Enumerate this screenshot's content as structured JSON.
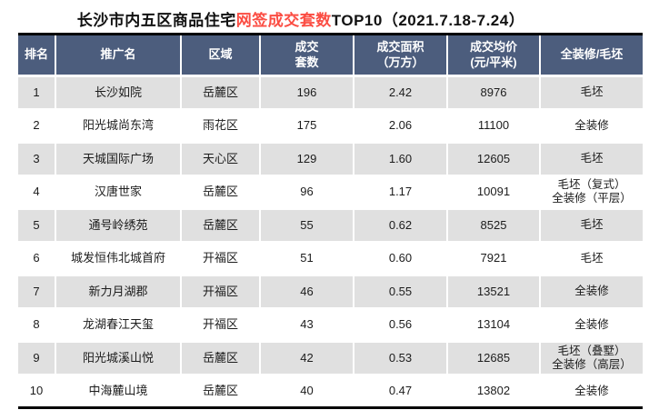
{
  "title": {
    "prefix": "长沙市内五区商品住宅",
    "highlight": "网签成交套数",
    "suffix": "TOP10（2021.7.18-7.24）"
  },
  "colors": {
    "header_bg": "#4c5d7d",
    "alt_row_bg": "#e0e0e0",
    "title_highlight": "#fb4d43",
    "border": "#000000"
  },
  "table": {
    "headers": [
      "排名",
      "推广名",
      "区域",
      "成交\n套数",
      "成交面积\n（万方）",
      "成交均价\n(元/平米)",
      "全装修/毛坯"
    ],
    "rows": [
      {
        "rank": "1",
        "name": "长沙如院",
        "district": "岳麓区",
        "units": "196",
        "area": "2.42",
        "price": "8976",
        "decoration": "毛坯"
      },
      {
        "rank": "2",
        "name": "阳光城尚东湾",
        "district": "雨花区",
        "units": "175",
        "area": "2.06",
        "price": "11100",
        "decoration": "全装修"
      },
      {
        "rank": "3",
        "name": "天城国际广场",
        "district": "天心区",
        "units": "129",
        "area": "1.60",
        "price": "12605",
        "decoration": "毛坯"
      },
      {
        "rank": "4",
        "name": "汉唐世家",
        "district": "岳麓区",
        "units": "96",
        "area": "1.17",
        "price": "10091",
        "decoration": "毛坯（复式）\n全装修（平层）"
      },
      {
        "rank": "5",
        "name": "通号岭绣苑",
        "district": "岳麓区",
        "units": "55",
        "area": "0.62",
        "price": "8525",
        "decoration": "毛坯"
      },
      {
        "rank": "6",
        "name": "城发恒伟北城首府",
        "district": "开福区",
        "units": "51",
        "area": "0.60",
        "price": "7921",
        "decoration": "毛坯"
      },
      {
        "rank": "7",
        "name": "新力月湖郡",
        "district": "开福区",
        "units": "46",
        "area": "0.55",
        "price": "13521",
        "decoration": "全装修"
      },
      {
        "rank": "8",
        "name": "龙湖春江天玺",
        "district": "开福区",
        "units": "43",
        "area": "0.56",
        "price": "13104",
        "decoration": "全装修"
      },
      {
        "rank": "9",
        "name": "阳光城溪山悦",
        "district": "岳麓区",
        "units": "42",
        "area": "0.53",
        "price": "12685",
        "decoration": "毛坯（叠墅）\n全装修（高层）"
      },
      {
        "rank": "10",
        "name": "中海麓山境",
        "district": "岳麓区",
        "units": "40",
        "area": "0.47",
        "price": "13802",
        "decoration": "全装修"
      }
    ]
  },
  "chart_data": {
    "type": "table",
    "title": "长沙市内五区商品住宅网签成交套数TOP10（2021.7.18-7.24）",
    "columns": [
      "排名",
      "推广名",
      "区域",
      "成交套数",
      "成交面积（万方）",
      "成交均价(元/平米)",
      "全装修/毛坯"
    ],
    "rows": [
      [
        1,
        "长沙如院",
        "岳麓区",
        196,
        2.42,
        8976,
        "毛坯"
      ],
      [
        2,
        "阳光城尚东湾",
        "雨花区",
        175,
        2.06,
        11100,
        "全装修"
      ],
      [
        3,
        "天城国际广场",
        "天心区",
        129,
        1.6,
        12605,
        "毛坯"
      ],
      [
        4,
        "汉唐世家",
        "岳麓区",
        96,
        1.17,
        10091,
        "毛坯（复式）全装修（平层）"
      ],
      [
        5,
        "通号岭绣苑",
        "岳麓区",
        55,
        0.62,
        8525,
        "毛坯"
      ],
      [
        6,
        "城发恒伟北城首府",
        "开福区",
        51,
        0.6,
        7921,
        "毛坯"
      ],
      [
        7,
        "新力月湖郡",
        "开福区",
        46,
        0.55,
        13521,
        "全装修"
      ],
      [
        8,
        "龙湖春江天玺",
        "开福区",
        43,
        0.56,
        13104,
        "全装修"
      ],
      [
        9,
        "阳光城溪山悦",
        "岳麓区",
        42,
        0.53,
        12685,
        "毛坯（叠墅）全装修（高层）"
      ],
      [
        10,
        "中海麓山境",
        "岳麓区",
        40,
        0.47,
        13802,
        "全装修"
      ]
    ]
  }
}
